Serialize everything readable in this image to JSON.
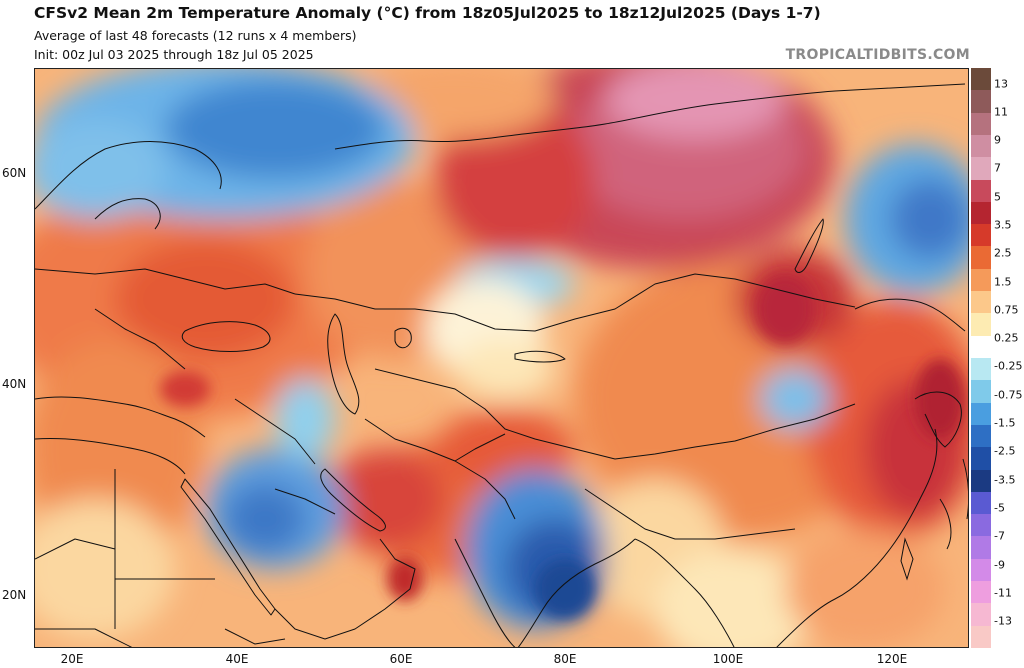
{
  "header": {
    "title": "CFSv2 Mean 2m Temperature Anomaly (°C) from 18z05Jul2025 to 18z12Jul2025 (Days 1-7)",
    "subtitle1": "Average of last 48 forecasts (12 runs x 4 members)",
    "subtitle2": "Init: 00z Jul 03 2025 through 18z Jul 05 2025",
    "credit": "TROPICALTIDBITS.COM"
  },
  "map": {
    "lat_labels": [
      "60N",
      "40N",
      "20N"
    ],
    "lon_labels": [
      "20E",
      "40E",
      "60E",
      "80E",
      "100E",
      "120E"
    ]
  },
  "colorbar": {
    "labels": [
      "13",
      "11",
      "9",
      "7",
      "5",
      "3.5",
      "2.5",
      "1.5",
      "0.75",
      "0.25",
      "-0.25",
      "-0.75",
      "-1.5",
      "-2.5",
      "-3.5",
      "-5",
      "-7",
      "-9",
      "-11",
      "-13"
    ],
    "colors": [
      "#6b4a3a",
      "#8e5a5a",
      "#b5727e",
      "#cf8ea2",
      "#e0a8bb",
      "#c84a5c",
      "#b52530",
      "#d63a2a",
      "#ea6a34",
      "#f59a5a",
      "#fcc88a",
      "#fdebb2",
      "#ffffff",
      "#b8e8f2",
      "#7fcaea",
      "#4a9ee0",
      "#2e6fc4",
      "#1f4fa6",
      "#1b3a82",
      "#5a5ad2",
      "#8a6ae0",
      "#b07ae6",
      "#d38ae8",
      "#ee9edf",
      "#f6b8d2",
      "#f9c9c6"
    ]
  }
}
